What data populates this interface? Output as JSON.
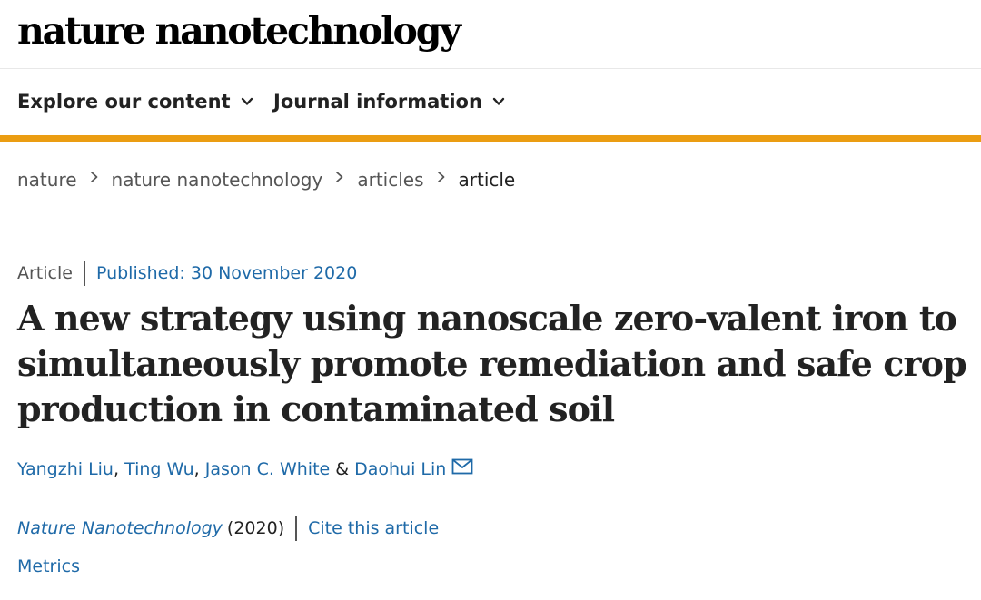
{
  "header": {
    "logo_text": "nature nanotechnology"
  },
  "nav": {
    "items": [
      {
        "label": "Explore our content",
        "icon": "chevron-down-icon"
      },
      {
        "label": "Journal information",
        "icon": "chevron-down-icon"
      }
    ],
    "accent_color": "#eb9d12"
  },
  "breadcrumb": {
    "items": [
      "nature",
      "nature nanotechnology",
      "articles",
      "article"
    ],
    "separator_icon": "chevron-right-icon"
  },
  "article": {
    "type": "Article",
    "published": "Published: 30 November 2020",
    "title": "A new strategy using nanoscale zero-valent iron to simultaneously promote remediation and safe crop production in contaminated soil",
    "authors": [
      "Yangzhi Liu",
      "Ting Wu",
      "Jason C. White",
      "Daohui Lin"
    ],
    "author_separators": [
      ", ",
      ", ",
      " & "
    ],
    "corresponding_icon": "mail-icon",
    "journal_name": "Nature Nanotechnology",
    "journal_year": "(2020)",
    "cite_label": "Cite this article",
    "metrics_label": "Metrics",
    "link_color": "#1f6aa8"
  }
}
